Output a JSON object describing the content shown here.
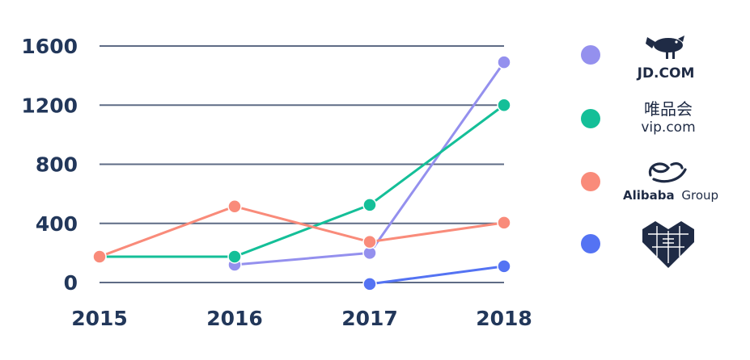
{
  "chart_data": {
    "type": "line",
    "x": [
      "2015",
      "2016",
      "2017",
      "2018"
    ],
    "ylim": [
      0,
      1600
    ],
    "yticks": [
      "0",
      "400",
      "800",
      "1200",
      "1600"
    ],
    "grid": true,
    "legend_position": "right",
    "series": [
      {
        "name": "JD.COM",
        "color": "#9490ee",
        "values": [
          null,
          120,
          200,
          1490
        ]
      },
      {
        "name": "唯品会 vip.com",
        "color": "#14bf98",
        "values": [
          175,
          175,
          525,
          1200
        ]
      },
      {
        "name": "Alibaba Group",
        "color": "#f98b7a",
        "values": [
          175,
          515,
          275,
          405
        ]
      },
      {
        "name": "",
        "color": "#5473f3",
        "values": [
          null,
          null,
          -10,
          110
        ]
      }
    ]
  },
  "legend": {
    "jd": {
      "text": "JD.COM",
      "icon": "jd-dog-icon"
    },
    "vip": {
      "text_cn": "唯品会",
      "text_en": "vip.com"
    },
    "alibaba": {
      "text_bold": "Alibaba",
      "text_regular": "Group",
      "icon": "alibaba-smile-icon"
    },
    "pinduoduo": {
      "icon": "pinduoduo-heart-icon"
    }
  }
}
